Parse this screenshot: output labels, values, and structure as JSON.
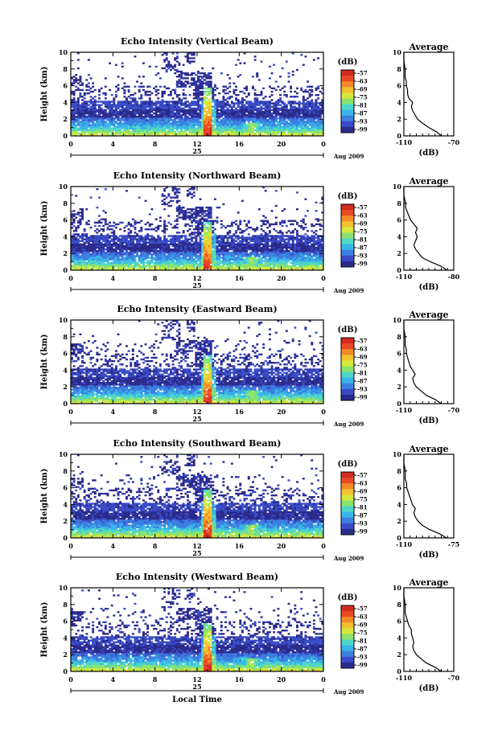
{
  "chart_data": [
    {
      "type": "heatmap",
      "title": "Echo Intensity (Vertical Beam)",
      "ylabel": "Height (km)",
      "xlabel": "",
      "x_ticks": [
        "0",
        "4",
        "8",
        "12",
        "16",
        "20",
        "0"
      ],
      "y_ticks": [
        "0",
        "2",
        "4",
        "6",
        "8",
        "10"
      ],
      "xlim": [
        0,
        24
      ],
      "ylim": [
        0,
        10
      ],
      "date_label": "25",
      "month_label": "Aug 2009",
      "colorbar": {
        "unit": "(dB)",
        "ticks": [
          "-57",
          "-63",
          "-69",
          "-75",
          "-81",
          "-87",
          "-93",
          "-99"
        ]
      },
      "average": {
        "title": "Average",
        "xlabel": "(dB)",
        "xticks": [
          "-110",
          "-70"
        ],
        "xlim": [
          -110,
          -70
        ],
        "profile": [
          [
            -80,
            0
          ],
          [
            -84,
            0.5
          ],
          [
            -90,
            1
          ],
          [
            -95,
            1.5
          ],
          [
            -99,
            2
          ],
          [
            -101,
            2.5
          ],
          [
            -103,
            3
          ],
          [
            -104,
            3.5
          ],
          [
            -103,
            4
          ],
          [
            -106,
            4.5
          ],
          [
            -107,
            5
          ],
          [
            -107,
            5.5
          ],
          [
            -108,
            6
          ],
          [
            -108,
            6.5
          ],
          [
            -109,
            7
          ],
          [
            -109,
            7.5
          ],
          [
            -109,
            8
          ],
          [
            -110,
            9
          ],
          [
            -110,
            10
          ]
        ]
      },
      "legend": "none",
      "grid": false
    },
    {
      "type": "heatmap",
      "title": "Echo Intensity (Northward Beam)",
      "ylabel": "Height (km)",
      "xlabel": "",
      "x_ticks": [
        "0",
        "4",
        "8",
        "12",
        "16",
        "20",
        "0"
      ],
      "y_ticks": [
        "0",
        "2",
        "4",
        "6",
        "8",
        "10"
      ],
      "xlim": [
        0,
        24
      ],
      "ylim": [
        0,
        10
      ],
      "date_label": "25",
      "month_label": "Aug 2009",
      "colorbar": {
        "unit": "(dB)",
        "ticks": [
          "-57",
          "-63",
          "-69",
          "-75",
          "-81",
          "-87",
          "-93",
          "-99"
        ]
      },
      "average": {
        "title": "Average",
        "xlabel": "(dB)",
        "xticks": [
          "-110",
          "-80"
        ],
        "xlim": [
          -110,
          -80
        ],
        "profile": [
          [
            -84,
            0
          ],
          [
            -88,
            0.5
          ],
          [
            -94,
            1
          ],
          [
            -99,
            1.5
          ],
          [
            -101,
            2
          ],
          [
            -103,
            2.5
          ],
          [
            -104,
            3
          ],
          [
            -103,
            3.5
          ],
          [
            -102,
            4
          ],
          [
            -103,
            4.5
          ],
          [
            -102,
            5
          ],
          [
            -104,
            5.5
          ],
          [
            -106,
            6
          ],
          [
            -107,
            6.5
          ],
          [
            -108,
            7
          ],
          [
            -109,
            7.5
          ],
          [
            -109,
            8
          ],
          [
            -110,
            9
          ],
          [
            -110,
            10
          ]
        ]
      },
      "legend": "none",
      "grid": false
    },
    {
      "type": "heatmap",
      "title": "Echo Intensity (Eastward Beam)",
      "ylabel": "Height (km)",
      "xlabel": "",
      "x_ticks": [
        "0",
        "4",
        "8",
        "12",
        "16",
        "20",
        "0"
      ],
      "y_ticks": [
        "0",
        "2",
        "4",
        "6",
        "8",
        "10"
      ],
      "xlim": [
        0,
        24
      ],
      "ylim": [
        0,
        10
      ],
      "date_label": "25",
      "month_label": "Aug 2009",
      "colorbar": {
        "unit": "(dB)",
        "ticks": [
          "-57",
          "-63",
          "-69",
          "-75",
          "-81",
          "-87",
          "-93",
          "-99"
        ]
      },
      "average": {
        "title": "Average",
        "xlabel": "(dB)",
        "xticks": [
          "-110",
          "-70"
        ],
        "xlim": [
          -110,
          -70
        ],
        "profile": [
          [
            -80,
            0
          ],
          [
            -85,
            0.5
          ],
          [
            -92,
            1
          ],
          [
            -96,
            1.5
          ],
          [
            -100,
            2
          ],
          [
            -102,
            2.5
          ],
          [
            -103,
            3
          ],
          [
            -101,
            3.5
          ],
          [
            -103,
            4
          ],
          [
            -105,
            4.5
          ],
          [
            -106,
            5
          ],
          [
            -107,
            5.5
          ],
          [
            -108,
            6
          ],
          [
            -108,
            6.5
          ],
          [
            -109,
            7
          ],
          [
            -109,
            7.5
          ],
          [
            -109,
            8
          ],
          [
            -110,
            9
          ],
          [
            -110,
            10
          ]
        ]
      },
      "legend": "none",
      "grid": false
    },
    {
      "type": "heatmap",
      "title": "Echo Intensity (Southward Beam)",
      "ylabel": "Height (km)",
      "xlabel": "",
      "x_ticks": [
        "0",
        "4",
        "8",
        "12",
        "16",
        "20",
        "0"
      ],
      "y_ticks": [
        "0",
        "2",
        "4",
        "6",
        "8",
        "10"
      ],
      "xlim": [
        0,
        24
      ],
      "ylim": [
        0,
        10
      ],
      "date_label": "25",
      "month_label": "Aug 2009",
      "colorbar": {
        "unit": "(dB)",
        "ticks": [
          "-57",
          "-63",
          "-69",
          "-75",
          "-81",
          "-87",
          "-93",
          "-99"
        ]
      },
      "average": {
        "title": "Average",
        "xlabel": "(dB)",
        "xticks": [
          "-110",
          "-75"
        ],
        "xlim": [
          -110,
          -75
        ],
        "profile": [
          [
            -80,
            0
          ],
          [
            -85,
            0.5
          ],
          [
            -92,
            1
          ],
          [
            -97,
            1.5
          ],
          [
            -100,
            2
          ],
          [
            -102,
            2.5
          ],
          [
            -103,
            3
          ],
          [
            -102,
            3.5
          ],
          [
            -104,
            4
          ],
          [
            -105,
            4.5
          ],
          [
            -106,
            5
          ],
          [
            -107,
            5.5
          ],
          [
            -108,
            6
          ],
          [
            -108,
            6.5
          ],
          [
            -109,
            7
          ],
          [
            -109,
            8
          ],
          [
            -110,
            9
          ],
          [
            -110,
            10
          ]
        ]
      },
      "legend": "none",
      "grid": false
    },
    {
      "type": "heatmap",
      "title": "Echo Intensity (Westward Beam)",
      "ylabel": "Height (km)",
      "xlabel": "Local Time",
      "x_ticks": [
        "0",
        "4",
        "8",
        "12",
        "16",
        "20",
        "0"
      ],
      "y_ticks": [
        "0",
        "2",
        "4",
        "6",
        "8",
        "10"
      ],
      "xlim": [
        0,
        24
      ],
      "ylim": [
        0,
        10
      ],
      "date_label": "25",
      "month_label": "Aug 2009",
      "colorbar": {
        "unit": "(dB)",
        "ticks": [
          "-57",
          "-63",
          "-69",
          "-75",
          "-81",
          "-87",
          "-93",
          "-99"
        ]
      },
      "average": {
        "title": "Average",
        "xlabel": "(dB)",
        "xticks": [
          "-110",
          "-70"
        ],
        "xlim": [
          -110,
          -70
        ],
        "profile": [
          [
            -80,
            0
          ],
          [
            -85,
            0.5
          ],
          [
            -92,
            1
          ],
          [
            -96,
            1.5
          ],
          [
            -100,
            2
          ],
          [
            -102,
            2.5
          ],
          [
            -103,
            3
          ],
          [
            -102,
            3.5
          ],
          [
            -103,
            4
          ],
          [
            -104,
            4.5
          ],
          [
            -104,
            5
          ],
          [
            -106,
            5.5
          ],
          [
            -107,
            6
          ],
          [
            -108,
            6.5
          ],
          [
            -109,
            7
          ],
          [
            -109,
            7.5
          ],
          [
            -109,
            8
          ],
          [
            -110,
            9
          ],
          [
            -110,
            10
          ]
        ]
      },
      "legend": "none",
      "grid": false
    }
  ],
  "colors": {
    "scale": [
      "#2b2b8c",
      "#3a4bc8",
      "#3c7fe0",
      "#39b4e8",
      "#4fd6c9",
      "#8be36e",
      "#d6e83c",
      "#f2c130",
      "#f28a2a",
      "#e84a24",
      "#d22b22"
    ]
  }
}
